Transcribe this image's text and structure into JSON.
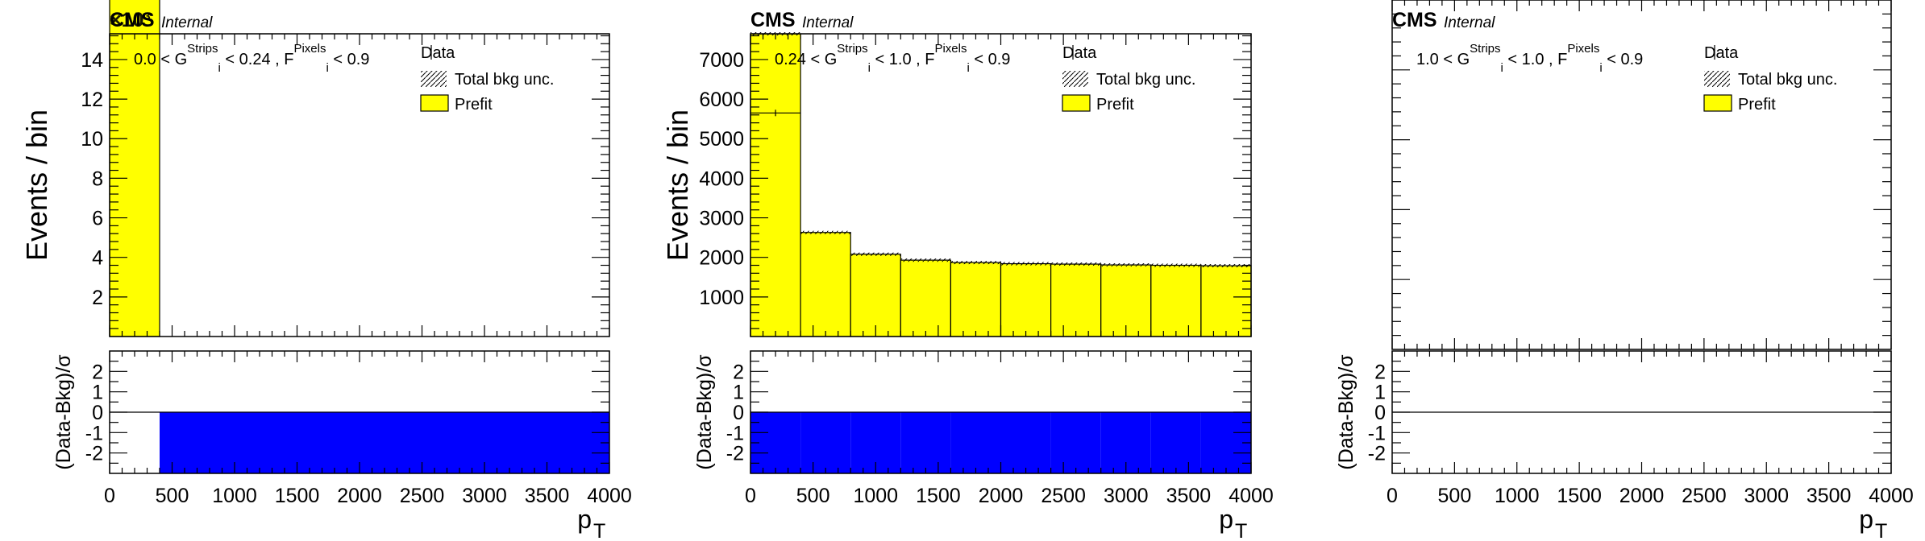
{
  "palette": {
    "prefit": "#ffff00",
    "pull": "#0000ff",
    "axis": "#000000"
  },
  "labels": {
    "experiment": "CMS",
    "status": "Internal",
    "y_main": "Events / bin",
    "y_ratio": "(Data-Bkg)/σ",
    "x": "p",
    "x_sub": "T",
    "exponent": "×10³",
    "legend_data": "Data",
    "legend_unc": "Total bkg unc.",
    "legend_prefit": "Prefit"
  },
  "chart_data": [
    {
      "type": "bar",
      "category_parts": [
        "0.0 < G",
        "Strips",
        "i",
        " < 0.24 , F",
        "Pixels",
        "i",
        " < 0.9"
      ],
      "x_range": [
        0,
        4000
      ],
      "x_ticks": [
        "0",
        "500",
        "1000",
        "1500",
        "2000",
        "2500",
        "3000",
        "3500",
        "4000"
      ],
      "y_ticks": [
        2,
        4,
        6,
        8,
        10,
        12,
        14
      ],
      "y_range": [
        0,
        15.3
      ],
      "y_multiplier": 1000,
      "bin_edges": [
        0,
        400,
        4000
      ],
      "prefit": [
        11300,
        0
      ],
      "data": [],
      "pull_range": [
        -3,
        3
      ],
      "pull_ticks": [
        -2,
        -1,
        0,
        1,
        2
      ],
      "pull": [
        0,
        -3
      ],
      "legend": [
        "Data",
        "Total bkg unc.",
        "Prefit"
      ],
      "grid": false
    },
    {
      "type": "bar",
      "category_parts": [
        "0.24 < G",
        "Strips",
        "i",
        " < 1.0 , F",
        "Pixels",
        "i",
        " < 0.9"
      ],
      "x_range": [
        0,
        4000
      ],
      "x_ticks": [
        "0",
        "500",
        "1000",
        "1500",
        "2000",
        "2500",
        "3000",
        "3500",
        "4000"
      ],
      "y_ticks": [
        1000,
        2000,
        3000,
        4000,
        5000,
        6000,
        7000
      ],
      "y_range": [
        0,
        7650
      ],
      "bin_edges": [
        0,
        400,
        800,
        1200,
        1600,
        2000,
        2400,
        2800,
        3200,
        3600,
        4000
      ],
      "prefit": [
        7650,
        2630,
        2080,
        1930,
        1870,
        1840,
        1830,
        1810,
        1800,
        1790
      ],
      "data": [
        5650,
        0,
        0,
        0,
        0,
        0,
        0,
        0,
        0,
        0
      ],
      "pull_range": [
        -3,
        3
      ],
      "pull_ticks": [
        -2,
        -1,
        0,
        1,
        2
      ],
      "pull": [
        -3,
        -3,
        -3,
        -3,
        -3,
        -3,
        -3,
        -3,
        -3,
        -3
      ],
      "legend": [
        "Data",
        "Total bkg unc.",
        "Prefit"
      ],
      "grid": false
    },
    {
      "type": "bar",
      "category_parts": [
        "1.0 < G",
        "Strips",
        "i",
        " < 1.0 , F",
        "Pixels",
        "i",
        " < 0.9"
      ],
      "x_range": [
        0,
        4000
      ],
      "x_ticks": [
        "0",
        "500",
        "1000",
        "1500",
        "2000",
        "2500",
        "3000",
        "3500",
        "4000"
      ],
      "y_ticks": [],
      "bin_edges": [],
      "prefit": [],
      "data": [],
      "pull_range": [
        -3,
        3
      ],
      "pull_ticks": [
        -2,
        -1,
        0,
        1,
        2
      ],
      "pull": [],
      "legend": [
        "Data",
        "Total bkg unc.",
        "Prefit"
      ],
      "grid": false
    }
  ]
}
